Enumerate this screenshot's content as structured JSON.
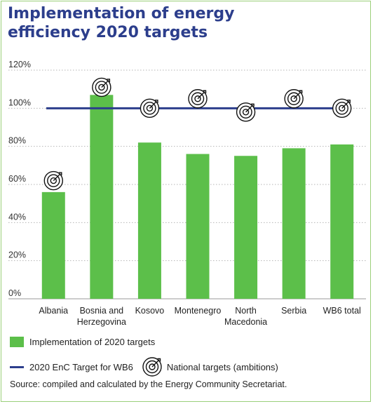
{
  "title": {
    "line1": "Implementation of energy",
    "line2": "efficiency 2020 targets"
  },
  "chart_data": {
    "type": "bar",
    "categories": [
      [
        "Albania"
      ],
      [
        "Bosnia and",
        "Herzegovina"
      ],
      [
        "Kosovo"
      ],
      [
        "Montenegro"
      ],
      [
        "North",
        "Macedonia"
      ],
      [
        "Serbia"
      ],
      [
        "WB6 total"
      ]
    ],
    "series": [
      {
        "name": "Implementation of 2020 targets",
        "values": [
          56,
          107,
          82,
          76,
          75,
          79,
          81
        ],
        "color": "#5cbf4a"
      }
    ],
    "target_line": {
      "name": "2020 EnC Target for WB6",
      "value": 100,
      "color": "#2c3e8c"
    },
    "national_targets": {
      "name": "National targets (ambitions)",
      "values": [
        62,
        111,
        100,
        105,
        98,
        105,
        100
      ]
    },
    "ylim": [
      0,
      120
    ],
    "yticks": [
      0,
      20,
      40,
      60,
      80,
      100,
      120
    ],
    "ytick_labels": [
      "0%",
      "20%",
      "40%",
      "60%",
      "80%",
      "100%",
      "120%"
    ],
    "grid": "horizontal-dotted",
    "legend_position": "bottom-left"
  },
  "legend": {
    "bars_label": "Implementation of 2020 targets",
    "line_label": "2020 EnC Target for WB6",
    "icon_label": "National targets (ambitions)",
    "icon": "target-icon"
  },
  "source": "Source: compiled and calculated by the Energy Community Secretariat."
}
